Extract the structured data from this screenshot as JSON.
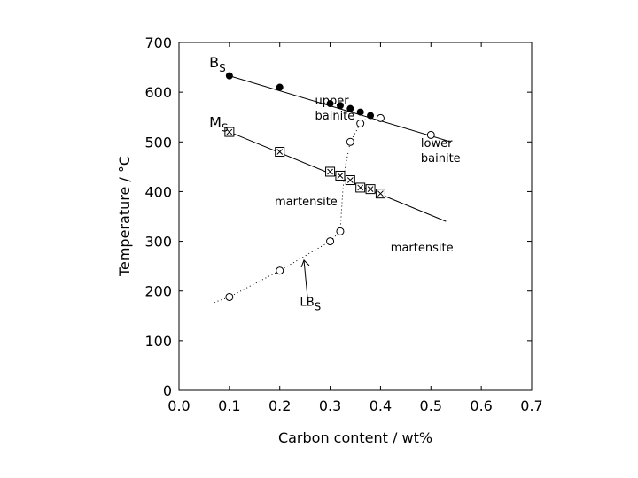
{
  "chart_data": {
    "type": "scatter",
    "xlabel": "Carbon content / wt%",
    "ylabel": "Temperature / °C",
    "xlim": [
      0.0,
      0.7
    ],
    "ylim": [
      0,
      700
    ],
    "xticks": [
      "0.0",
      "0.1",
      "0.2",
      "0.3",
      "0.4",
      "0.5",
      "0.6",
      "0.7"
    ],
    "yticks": [
      "0",
      "100",
      "200",
      "300",
      "400",
      "500",
      "600",
      "700"
    ],
    "grid": false,
    "legend": "none",
    "series": [
      {
        "name": "BS",
        "marker": "filled-circle",
        "points": [
          {
            "x": 0.1,
            "y": 633
          },
          {
            "x": 0.2,
            "y": 610
          },
          {
            "x": 0.3,
            "y": 577
          },
          {
            "x": 0.32,
            "y": 573
          },
          {
            "x": 0.34,
            "y": 567
          },
          {
            "x": 0.36,
            "y": 560
          },
          {
            "x": 0.38,
            "y": 553
          }
        ]
      },
      {
        "name": "BS (open)",
        "marker": "open-circle",
        "points": [
          {
            "x": 0.4,
            "y": 548
          },
          {
            "x": 0.5,
            "y": 514
          }
        ]
      },
      {
        "name": "MS",
        "marker": "boxed-x",
        "points": [
          {
            "x": 0.1,
            "y": 520
          },
          {
            "x": 0.2,
            "y": 480
          },
          {
            "x": 0.3,
            "y": 440
          },
          {
            "x": 0.32,
            "y": 432
          },
          {
            "x": 0.34,
            "y": 423
          },
          {
            "x": 0.36,
            "y": 408
          },
          {
            "x": 0.38,
            "y": 405
          },
          {
            "x": 0.4,
            "y": 396
          }
        ]
      },
      {
        "name": "LBS",
        "marker": "open-circle",
        "points": [
          {
            "x": 0.1,
            "y": 188
          },
          {
            "x": 0.2,
            "y": 241
          },
          {
            "x": 0.3,
            "y": 300
          },
          {
            "x": 0.32,
            "y": 320
          },
          {
            "x": 0.34,
            "y": 500
          },
          {
            "x": 0.36,
            "y": 537
          }
        ]
      }
    ],
    "lines": {
      "bs_line": [
        {
          "x": 0.1,
          "y": 633
        },
        {
          "x": 0.54,
          "y": 500
        }
      ],
      "ms_line": [
        {
          "x": 0.1,
          "y": 520
        },
        {
          "x": 0.53,
          "y": 340
        }
      ],
      "lbs_curve": [
        {
          "x": 0.07,
          "y": 177
        },
        {
          "x": 0.1,
          "y": 188
        },
        {
          "x": 0.2,
          "y": 241
        },
        {
          "x": 0.3,
          "y": 300
        },
        {
          "x": 0.32,
          "y": 320
        },
        {
          "x": 0.325,
          "y": 400
        },
        {
          "x": 0.33,
          "y": 450
        },
        {
          "x": 0.34,
          "y": 500
        },
        {
          "x": 0.36,
          "y": 537
        },
        {
          "x": 0.38,
          "y": 553
        }
      ]
    },
    "annotations": {
      "bs_label": {
        "main": "B",
        "sub": "S",
        "x": 0.06,
        "y": 650
      },
      "ms_label": {
        "main": "M",
        "sub": "S",
        "x": 0.06,
        "y": 530
      },
      "lbs_label": {
        "main": "LB",
        "sub": "S",
        "x": 0.24,
        "y": 170
      },
      "upper_bainite": {
        "lines": [
          "upper",
          "bainite"
        ],
        "x": 0.27,
        "y": 575
      },
      "lower_bainite": {
        "lines": [
          "lower",
          "bainite"
        ],
        "x": 0.48,
        "y": 490
      },
      "martensite_left": {
        "lines": [
          "martensite"
        ],
        "x": 0.19,
        "y": 372
      },
      "martensite_right": {
        "lines": [
          "martensite"
        ],
        "x": 0.42,
        "y": 280
      }
    }
  }
}
